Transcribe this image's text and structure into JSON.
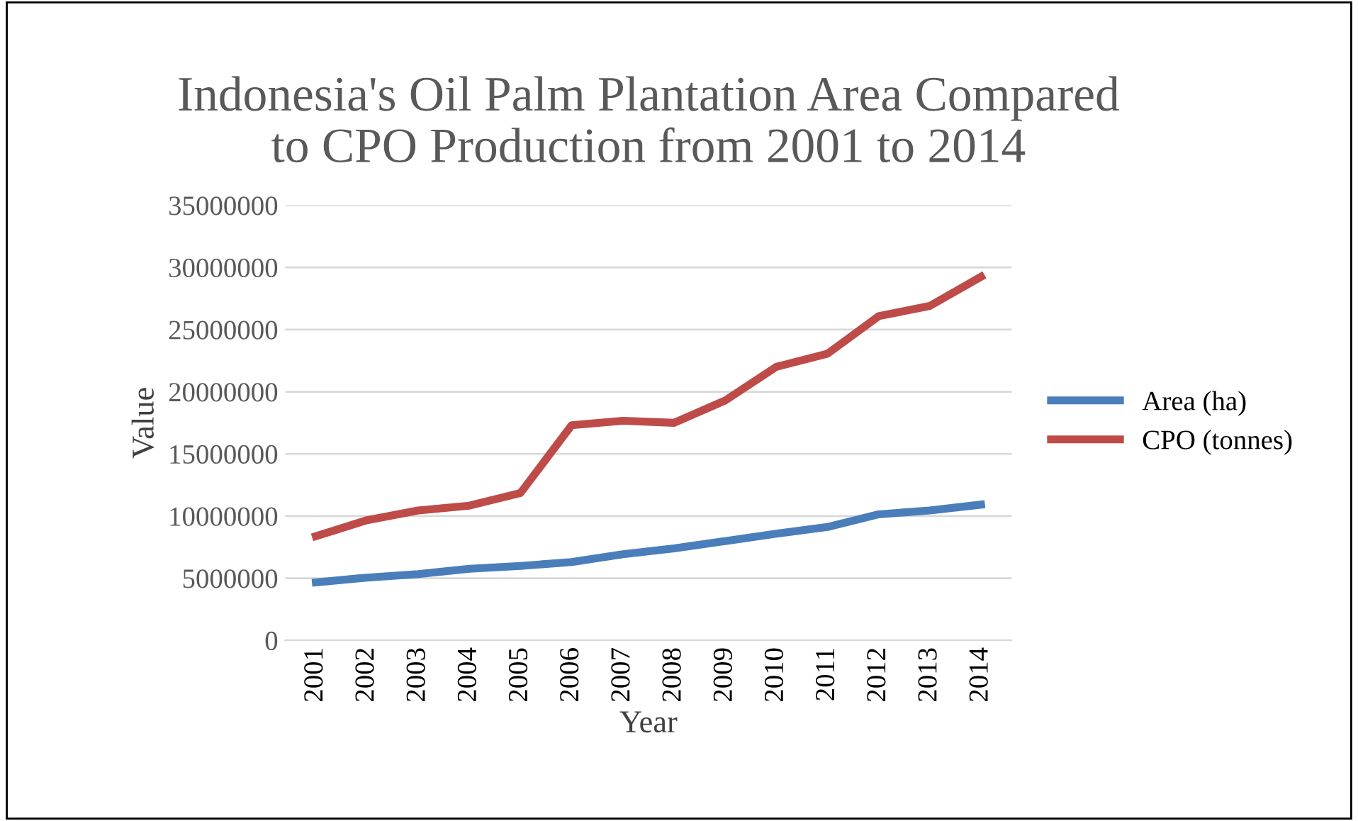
{
  "chart_data": {
    "type": "line",
    "title": "Indonesia's Oil Palm Plantation Area Compared\nto CPO Production from 2001 to 2014",
    "xlabel": "Year",
    "ylabel": "Value",
    "categories": [
      "2001",
      "2002",
      "2003",
      "2004",
      "2005",
      "2006",
      "2007",
      "2008",
      "2009",
      "2010",
      "2011",
      "2012",
      "2013",
      "2014"
    ],
    "series": [
      {
        "name": "Area (ha)",
        "color": "#4a7ebb",
        "values": [
          4660000,
          5050000,
          5330000,
          5760000,
          5990000,
          6300000,
          6930000,
          7400000,
          7990000,
          8580000,
          9120000,
          10140000,
          10450000,
          10920000
        ]
      },
      {
        "name": "CPO (tonnes)",
        "color": "#be4b48",
        "values": [
          8380000,
          9670000,
          10450000,
          10840000,
          11860000,
          17310000,
          17660000,
          17500000,
          19300000,
          22000000,
          23060000,
          26080000,
          26900000,
          29250000
        ]
      }
    ],
    "ylim": [
      0,
      35000000
    ],
    "yticks": [
      0,
      5000000,
      10000000,
      15000000,
      20000000,
      25000000,
      30000000,
      35000000
    ],
    "grid": "y",
    "legend": "right",
    "marker": "none",
    "line_style": "solid"
  }
}
